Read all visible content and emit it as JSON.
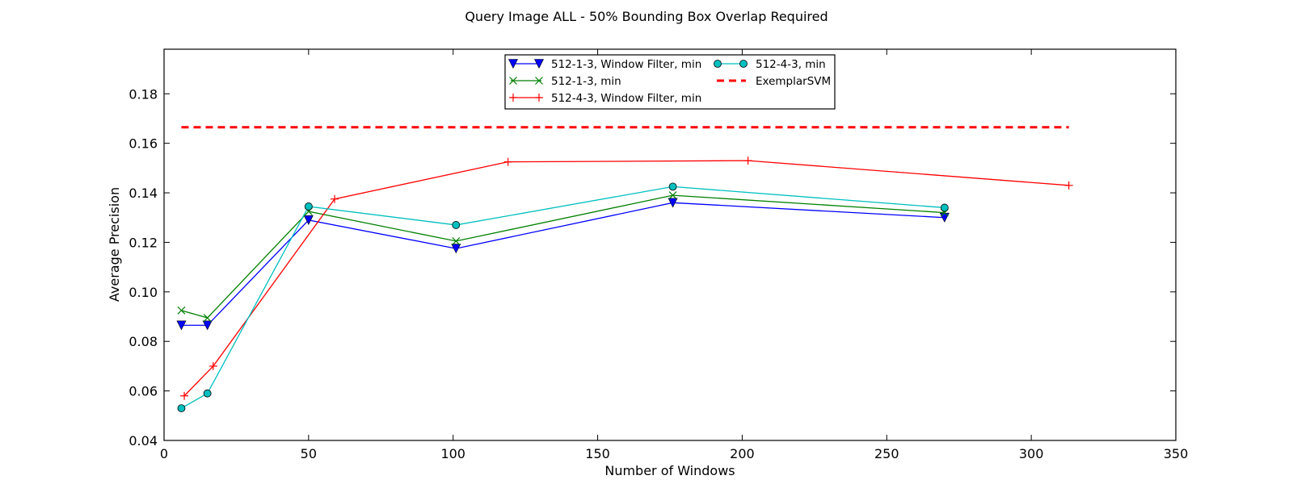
{
  "chart_data": {
    "type": "line",
    "title": "Query Image ALL - 50% Bounding Box Overlap Required",
    "xlabel": "Number of Windows",
    "ylabel": "Average Precision",
    "xlim": [
      0,
      350
    ],
    "ylim": [
      0.04,
      0.198
    ],
    "xticks": [
      0,
      50,
      100,
      150,
      200,
      250,
      300,
      350
    ],
    "yticks": [
      0.04,
      0.06,
      0.08,
      0.1,
      0.12,
      0.14,
      0.16,
      0.18
    ],
    "xtick_labels": [
      "0",
      "50",
      "100",
      "150",
      "200",
      "250",
      "300",
      "350"
    ],
    "ytick_labels": [
      "0.04",
      "0.06",
      "0.08",
      "0.10",
      "0.12",
      "0.14",
      "0.16",
      "0.18"
    ],
    "grid": false,
    "legend_position": "top-center",
    "series": [
      {
        "name": "512-1-3, Window Filter, min",
        "color": "#0000ff",
        "marker": "triangle-down",
        "dashed": false,
        "x": [
          6,
          15,
          50,
          101,
          176,
          270
        ],
        "y": [
          0.0865,
          0.0865,
          0.129,
          0.1175,
          0.136,
          0.13
        ]
      },
      {
        "name": "512-1-3, min",
        "color": "#008000",
        "marker": "x",
        "dashed": false,
        "x": [
          6,
          15,
          50,
          101,
          176,
          270
        ],
        "y": [
          0.0925,
          0.0895,
          0.1325,
          0.1205,
          0.139,
          0.132
        ]
      },
      {
        "name": "512-4-3, Window Filter, min",
        "color": "#ff0000",
        "marker": "plus",
        "dashed": false,
        "x": [
          7,
          17,
          59,
          119,
          202,
          313
        ],
        "y": [
          0.058,
          0.07,
          0.1375,
          0.1525,
          0.153,
          0.143
        ]
      },
      {
        "name": "512-4-3, min",
        "color": "#00bfbf",
        "marker": "circle",
        "dashed": false,
        "x": [
          6,
          15,
          50,
          101,
          176,
          270
        ],
        "y": [
          0.053,
          0.059,
          0.1345,
          0.127,
          0.1425,
          0.134
        ]
      },
      {
        "name": "ExemplarSVM",
        "color": "#ff0000",
        "marker": "none",
        "dashed": true,
        "x": [
          6,
          313
        ],
        "y": [
          0.1665,
          0.1665
        ]
      }
    ]
  }
}
